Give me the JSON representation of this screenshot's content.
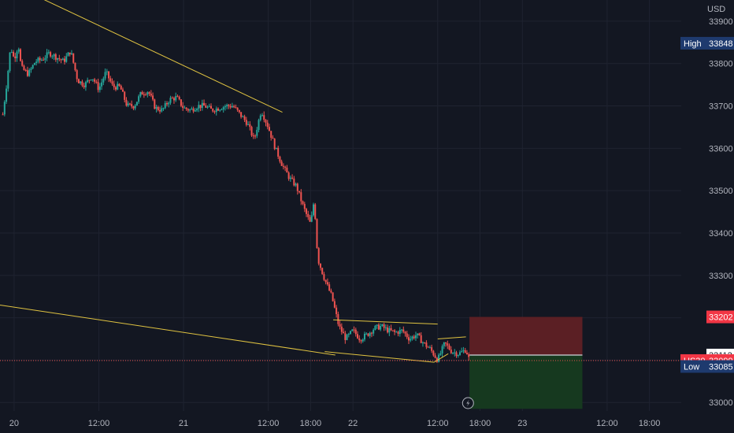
{
  "chart_data": {
    "type": "candlestick",
    "symbol": "US30",
    "currency": "USD",
    "y_ticks": [
      33000,
      33100,
      33200,
      33300,
      33400,
      33500,
      33600,
      33700,
      33800,
      33900
    ],
    "y_tick_labels": [
      "33000",
      "33100",
      "33200",
      "33300",
      "33400",
      "33500",
      "33600",
      "33700",
      "33800",
      "33900"
    ],
    "ylim": [
      32980,
      33950
    ],
    "x_tick_labels": [
      "20",
      "12:00",
      "21",
      "12:00",
      "18:00",
      "22",
      "12:00",
      "18:00",
      "23",
      "12:00",
      "18:00"
    ],
    "x_ticks_hours": [
      0,
      12,
      24,
      36,
      42,
      48,
      60,
      66,
      72,
      84,
      90
    ],
    "xlim_hours": [
      -2.0,
      94.5
    ],
    "grid": true,
    "price_path": [
      [
        -1.6,
        33680
      ],
      [
        -1.0,
        33760
      ],
      [
        -0.5,
        33840
      ],
      [
        0.0,
        33810
      ],
      [
        0.6,
        33845
      ],
      [
        1.0,
        33790
      ],
      [
        2.0,
        33775
      ],
      [
        3.0,
        33805
      ],
      [
        4.0,
        33810
      ],
      [
        5.0,
        33825
      ],
      [
        6.0,
        33815
      ],
      [
        7.0,
        33805
      ],
      [
        8.0,
        33830
      ],
      [
        9.0,
        33760
      ],
      [
        10.0,
        33750
      ],
      [
        11.0,
        33770
      ],
      [
        12.0,
        33740
      ],
      [
        13.0,
        33780
      ],
      [
        14.0,
        33745
      ],
      [
        15.0,
        33745
      ],
      [
        16.0,
        33700
      ],
      [
        17.0,
        33700
      ],
      [
        18.0,
        33730
      ],
      [
        19.0,
        33735
      ],
      [
        20.0,
        33695
      ],
      [
        21.0,
        33690
      ],
      [
        22.0,
        33715
      ],
      [
        23.0,
        33720
      ],
      [
        24.0,
        33695
      ],
      [
        25.0,
        33690
      ],
      [
        26.0,
        33700
      ],
      [
        27.0,
        33700
      ],
      [
        28.0,
        33690
      ],
      [
        29.0,
        33695
      ],
      [
        30.0,
        33700
      ],
      [
        31.0,
        33700
      ],
      [
        32.0,
        33680
      ],
      [
        33.0,
        33660
      ],
      [
        34.0,
        33620
      ],
      [
        35.0,
        33690
      ],
      [
        36.0,
        33650
      ],
      [
        37.0,
        33600
      ],
      [
        38.0,
        33560
      ],
      [
        39.0,
        33530
      ],
      [
        40.0,
        33510
      ],
      [
        41.0,
        33460
      ],
      [
        42.0,
        33420
      ],
      [
        42.5,
        33480
      ],
      [
        43.0,
        33340
      ],
      [
        44.0,
        33290
      ],
      [
        45.0,
        33250
      ],
      [
        46.0,
        33180
      ],
      [
        47.0,
        33150
      ],
      [
        48.0,
        33170
      ],
      [
        49.0,
        33150
      ],
      [
        50.0,
        33160
      ],
      [
        51.0,
        33175
      ],
      [
        52.0,
        33180
      ],
      [
        53.0,
        33170
      ],
      [
        54.0,
        33165
      ],
      [
        55.0,
        33170
      ],
      [
        56.0,
        33150
      ],
      [
        57.0,
        33160
      ],
      [
        58.0,
        33140
      ],
      [
        59.0,
        33125
      ],
      [
        60.0,
        33100
      ],
      [
        61.0,
        33140
      ],
      [
        62.0,
        33120
      ],
      [
        63.0,
        33115
      ],
      [
        64.0,
        33125
      ],
      [
        64.5,
        33099
      ]
    ],
    "trendlines": [
      {
        "from": [
          -2.0,
          34000
        ],
        "to": [
          38.0,
          33685
        ],
        "color": "#e0c341"
      },
      {
        "from": [
          -2.0,
          33230
        ],
        "to": [
          45.5,
          33112
        ],
        "color": "#e0c341"
      },
      {
        "from": [
          44.0,
          33120
        ],
        "to": [
          59.5,
          33095
        ],
        "color": "#e0c341"
      },
      {
        "from": [
          45.2,
          33195
        ],
        "to": [
          60.0,
          33185
        ],
        "color": "#e0c341"
      },
      {
        "from": [
          59.5,
          33095
        ],
        "to": [
          61.5,
          33115
        ],
        "color": "#e0c341"
      },
      {
        "from": [
          60.0,
          33150
        ],
        "to": [
          64.0,
          33155
        ],
        "color": "#e0c341"
      }
    ],
    "position": {
      "start_hour": 64.5,
      "end_hour": 80.5,
      "stop_loss": 33202,
      "entry": 33112,
      "take_profit": 32985,
      "risk_color": "#5b1f24",
      "reward_color": "#16391f"
    },
    "price_tags": [
      {
        "label": "",
        "value": "33202",
        "y": 33202,
        "bg": "#f23645",
        "fg": "#ffffff"
      },
      {
        "label": "",
        "value": "33112",
        "y": 33112,
        "bg": "#ffffff",
        "fg": "#131722"
      },
      {
        "label": "US30",
        "value": "33099",
        "y": 33099,
        "bg": "#f23645",
        "fg": "#ffffff"
      },
      {
        "label": "High",
        "value": "33848",
        "y": 33848,
        "bg": "#1e3a6e",
        "fg": "#ffffff"
      },
      {
        "label": "Low",
        "value": "33085",
        "y": 33085,
        "bg": "#1e3a6e",
        "fg": "#ffffff"
      }
    ],
    "current_price": 33099,
    "event_marker_hour": 64.3,
    "colors": {
      "background": "#131722",
      "grid": "#1f2330",
      "up": "#26a69a",
      "down": "#ef5350",
      "axis_text": "#b2b5be"
    }
  }
}
